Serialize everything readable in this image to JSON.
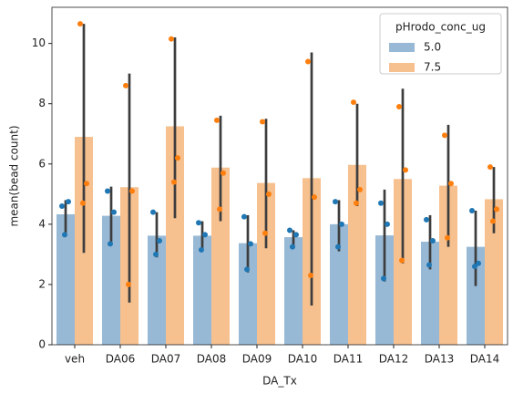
{
  "chart_data": {
    "type": "bar",
    "x_label": "DA_Tx",
    "y_label": "mean(bead count)",
    "categories": [
      "veh",
      "DA06",
      "DA07",
      "DA08",
      "DA09",
      "DA10",
      "DA11",
      "DA12",
      "DA13",
      "DA14"
    ],
    "legend_title": "pHrodo_conc_ug",
    "legend": "upper right",
    "series": [
      {
        "name": "5.0",
        "color": "#98b9d5",
        "point_color": "#1f77b4",
        "values": [
          4.33,
          4.28,
          3.62,
          3.62,
          3.37,
          3.57,
          4.0,
          3.63,
          3.42,
          3.25
        ],
        "ci_low": [
          3.6,
          3.3,
          2.9,
          3.1,
          2.4,
          3.25,
          3.1,
          2.1,
          2.5,
          1.95
        ],
        "ci_high": [
          4.8,
          5.25,
          4.4,
          4.1,
          4.3,
          3.8,
          4.8,
          5.15,
          4.3,
          4.45
        ],
        "points": [
          [
            4.6,
            4.75,
            3.65
          ],
          [
            5.1,
            4.4,
            3.35
          ],
          [
            4.4,
            3.45,
            3.0
          ],
          [
            4.05,
            3.65,
            3.15
          ],
          [
            4.25,
            3.35,
            2.5
          ],
          [
            3.8,
            3.65,
            3.25
          ],
          [
            4.75,
            4.0,
            3.25
          ],
          [
            4.7,
            4.0,
            2.2
          ],
          [
            4.15,
            3.45,
            2.65
          ],
          [
            4.45,
            2.7,
            2.6
          ]
        ]
      },
      {
        "name": "7.5",
        "color": "#f6c08f",
        "point_color": "#ff7f0e",
        "values": [
          6.9,
          5.23,
          7.25,
          5.88,
          5.37,
          5.53,
          5.97,
          5.5,
          5.28,
          4.83
        ],
        "ci_low": [
          3.05,
          1.4,
          4.2,
          4.1,
          3.2,
          1.3,
          4.6,
          2.7,
          3.25,
          3.7
        ],
        "ci_high": [
          10.65,
          9.0,
          10.2,
          7.6,
          7.5,
          9.7,
          8.0,
          8.5,
          7.3,
          5.9
        ],
        "points": [
          [
            10.65,
            5.35,
            4.7
          ],
          [
            8.6,
            5.1,
            2.0
          ],
          [
            10.15,
            6.2,
            5.4
          ],
          [
            7.45,
            5.7,
            4.5
          ],
          [
            7.4,
            5.0,
            3.7
          ],
          [
            9.4,
            4.9,
            2.3
          ],
          [
            8.05,
            5.15,
            4.7
          ],
          [
            7.9,
            5.8,
            2.8
          ],
          [
            6.95,
            5.35,
            3.55
          ],
          [
            5.9,
            4.5,
            4.1
          ]
        ]
      }
    ],
    "ylim": [
      0,
      11.2
    ],
    "yticks": [
      0,
      2,
      4,
      6,
      8,
      10
    ]
  }
}
